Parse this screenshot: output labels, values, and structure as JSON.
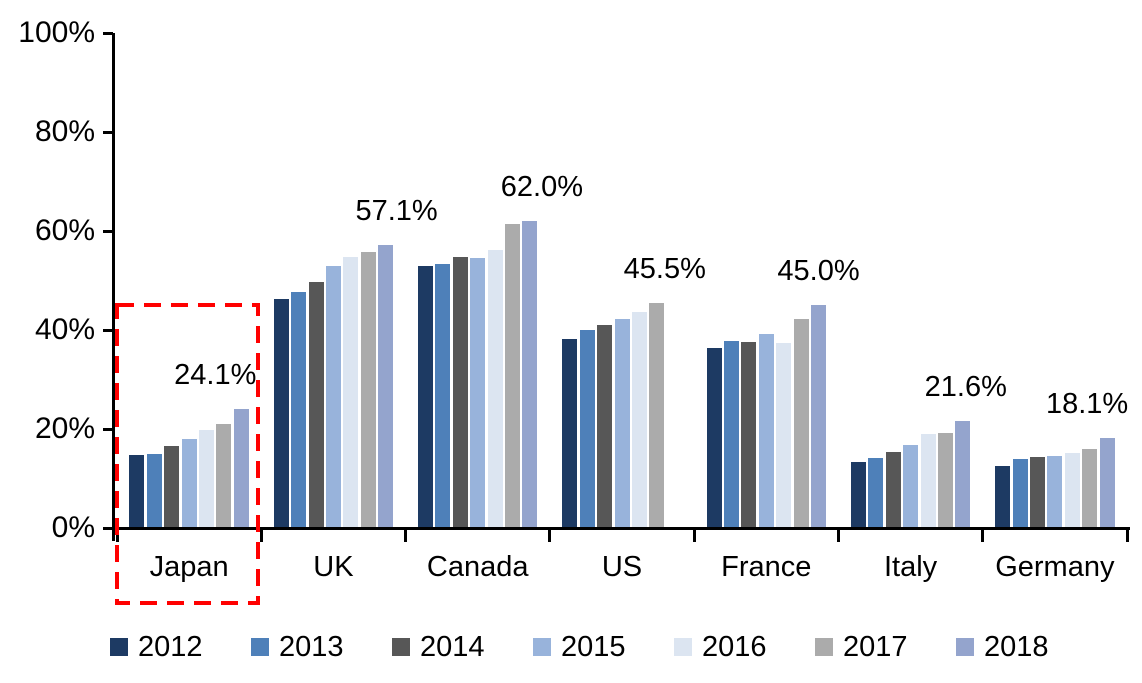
{
  "chart_data": {
    "type": "bar",
    "title": "",
    "xlabel": "",
    "ylabel": "",
    "y_axis": {
      "ticks": [
        "0%",
        "20%",
        "40%",
        "60%",
        "80%",
        "100%"
      ],
      "min": 0,
      "max": 100,
      "grid": false
    },
    "categories": [
      "Japan",
      "UK",
      "Canada",
      "US",
      "France",
      "Italy",
      "Germany"
    ],
    "series": [
      {
        "name": "2012",
        "color": "#1D3A63",
        "values": [
          14.8,
          46.3,
          52.9,
          38.2,
          36.4,
          13.3,
          12.5
        ]
      },
      {
        "name": "2013",
        "color": "#4E80B9",
        "values": [
          14.9,
          47.6,
          53.3,
          40.1,
          37.7,
          14.2,
          13.9
        ]
      },
      {
        "name": "2014",
        "color": "#575757",
        "values": [
          16.6,
          49.8,
          54.8,
          41.1,
          37.6,
          15.3,
          14.3
        ]
      },
      {
        "name": "2015",
        "color": "#98B3DB",
        "values": [
          17.9,
          53.0,
          54.6,
          42.2,
          39.2,
          16.8,
          14.6
        ]
      },
      {
        "name": "2016",
        "color": "#DCE5F1",
        "values": [
          19.9,
          54.7,
          56.1,
          43.6,
          37.3,
          19.0,
          15.2
        ]
      },
      {
        "name": "2017",
        "color": "#ABABAB",
        "values": [
          21.0,
          55.7,
          61.5,
          45.5,
          42.3,
          19.2,
          15.9
        ]
      },
      {
        "name": "2018",
        "color": "#94A4CD",
        "values": [
          24.1,
          57.1,
          62.0,
          null,
          45.0,
          21.6,
          18.1
        ]
      }
    ],
    "annotations": [
      {
        "category": "Japan",
        "text": "24.1%"
      },
      {
        "category": "UK",
        "text": "57.1%"
      },
      {
        "category": "Canada",
        "text": "62.0%"
      },
      {
        "category": "US",
        "text": "45.5%"
      },
      {
        "category": "France",
        "text": "45.0%"
      },
      {
        "category": "Italy",
        "text": "21.6%"
      },
      {
        "category": "Germany",
        "text": "18.1%"
      }
    ],
    "highlight": {
      "category": "Japan",
      "style": "dashed-box",
      "color": "#FF0000"
    },
    "legend": {
      "position": "bottom",
      "entries": [
        "2012",
        "2013",
        "2014",
        "2015",
        "2016",
        "2017",
        "2018"
      ]
    },
    "axis_color": "#000000"
  }
}
